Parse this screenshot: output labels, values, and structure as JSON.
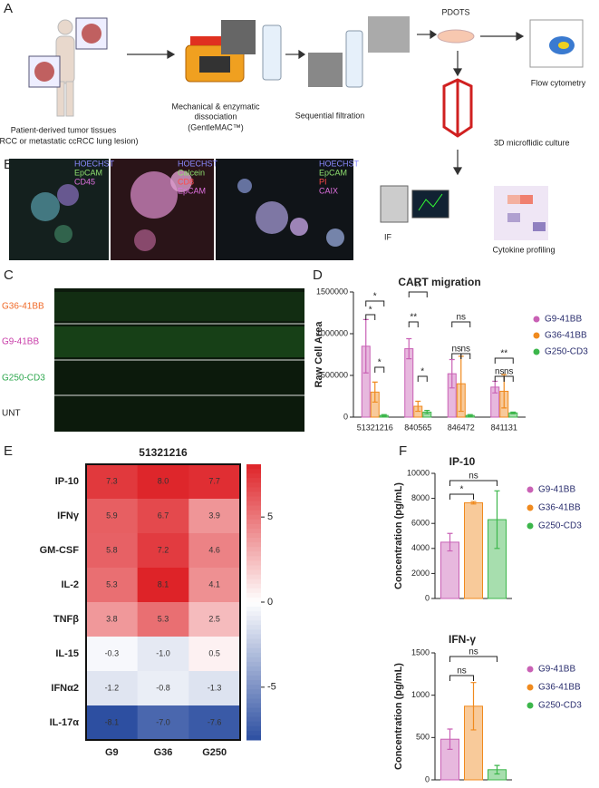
{
  "panel_labels": [
    "A",
    "B",
    "C",
    "D",
    "E",
    "F"
  ],
  "diagram": {
    "pdots": "PDOTS",
    "tissue": [
      "Patient-derived tumor tissues",
      "(ccRCC or metastatic ccRCC lung lesion)"
    ],
    "dissociation": [
      "Mechanical & enzymatic",
      "dissociation",
      "(GentleMAC™)"
    ],
    "filtration": "Sequential filtration",
    "flow": "Flow cytometry",
    "microfluidic": "3D microflidic culture",
    "if": "IF",
    "cytokine": "Cytokine profiling"
  },
  "images": [
    {
      "stains": [
        "HOECHST",
        "EpCAM",
        "CD45"
      ]
    },
    {
      "stains": [
        "HOECHST",
        "Calcein",
        "CD8",
        "EpCAM"
      ]
    },
    {
      "stains": [
        "HOECHST",
        "EpCAM",
        "PI",
        "CAIX"
      ]
    },
    {
      "rows": [
        "G36-41BB",
        "G9-41BB",
        "G250-CD3",
        "UNT"
      ]
    }
  ],
  "chart_data": [
    {
      "type": "bar",
      "title": "CART migration",
      "y_label": "Raw Cell Area",
      "categories": [
        "51321216",
        "840565",
        "846472",
        "841131"
      ],
      "series": [
        {
          "name": "G9-41BB",
          "color": "#c961b5",
          "values": [
            850000,
            820000,
            520000,
            360000
          ],
          "errors": [
            320000,
            120000,
            170000,
            70000
          ]
        },
        {
          "name": "G36-41BB",
          "color": "#f08a1e",
          "values": [
            300000,
            130000,
            400000,
            310000
          ],
          "errors": [
            120000,
            60000,
            330000,
            200000
          ]
        },
        {
          "name": "G250-CD3",
          "color": "#3cb64b",
          "values": [
            20000,
            60000,
            20000,
            50000
          ],
          "errors": [
            10000,
            20000,
            10000,
            10000
          ]
        }
      ],
      "ylim": [
        0,
        1500000
      ],
      "yticks": [
        0,
        500000,
        1000000,
        1500000
      ],
      "annotations": [
        "*",
        "*",
        "*",
        "**",
        "**",
        "*",
        "ns",
        "ns",
        "ns",
        "**",
        "ns",
        "ns"
      ]
    },
    {
      "type": "heatmap",
      "title": "51321216",
      "rows": [
        "IP-10",
        "IFNγ",
        "GM-CSF",
        "IL-2",
        "TNFβ",
        "IL-15",
        "IFNα2",
        "IL-17α"
      ],
      "columns": [
        "G9",
        "G36",
        "G250"
      ],
      "values": [
        [
          7.3,
          8.0,
          7.7
        ],
        [
          5.9,
          6.7,
          3.9
        ],
        [
          5.8,
          7.2,
          4.6
        ],
        [
          5.3,
          8.1,
          4.1
        ],
        [
          3.8,
          5.3,
          2.5
        ],
        [
          -0.3,
          -1.0,
          0.5
        ],
        [
          -1.2,
          -0.8,
          -1.3
        ],
        [
          -8.1,
          -7.0,
          -7.6
        ]
      ],
      "value_labels": [
        [
          "7.3",
          "8.0",
          "7.7"
        ],
        [
          "5.9",
          "6.7",
          "3.9"
        ],
        [
          "5.8",
          "7.2",
          "4.6"
        ],
        [
          "5.3",
          "8.1",
          "4.1"
        ],
        [
          "3.8",
          "5.3",
          "2.5"
        ],
        [
          "-0.3",
          "-1.0",
          "0.5"
        ],
        [
          "-1.2",
          "-0.8",
          "-1.3"
        ],
        [
          "-8.1",
          "-7.0",
          "-7.6"
        ]
      ],
      "zlim": [
        -8.1,
        8.1
      ],
      "zticks": [
        5,
        0,
        -5
      ]
    },
    {
      "type": "bar",
      "title": "IP-10",
      "y_label": "Concentration (pg/mL)",
      "series": [
        {
          "name": "G9-41BB",
          "color": "#c961b5",
          "values": [
            4500
          ],
          "errors": [
            700
          ]
        },
        {
          "name": "G36-41BB",
          "color": "#f08a1e",
          "values": [
            7650
          ],
          "errors": [
            100
          ]
        },
        {
          "name": "G250-CD3",
          "color": "#3cb64b",
          "values": [
            6300
          ],
          "errors": [
            2300
          ]
        }
      ],
      "ylim": [
        0,
        10000
      ],
      "yticks": [
        0,
        2000,
        4000,
        6000,
        8000,
        10000
      ],
      "annotations": [
        "*",
        "ns"
      ]
    },
    {
      "type": "bar",
      "title": "IFN-γ",
      "y_label": "Concentration (pg/mL)",
      "series": [
        {
          "name": "G9-41BB",
          "color": "#c961b5",
          "values": [
            480
          ],
          "errors": [
            120
          ]
        },
        {
          "name": "G36-41BB",
          "color": "#f08a1e",
          "values": [
            870
          ],
          "errors": [
            280
          ]
        },
        {
          "name": "G250-CD3",
          "color": "#3cb64b",
          "values": [
            120
          ],
          "errors": [
            50
          ]
        }
      ],
      "ylim": [
        0,
        1500
      ],
      "yticks": [
        0,
        500,
        1000,
        1500
      ],
      "annotations": [
        "ns",
        "ns"
      ]
    }
  ]
}
